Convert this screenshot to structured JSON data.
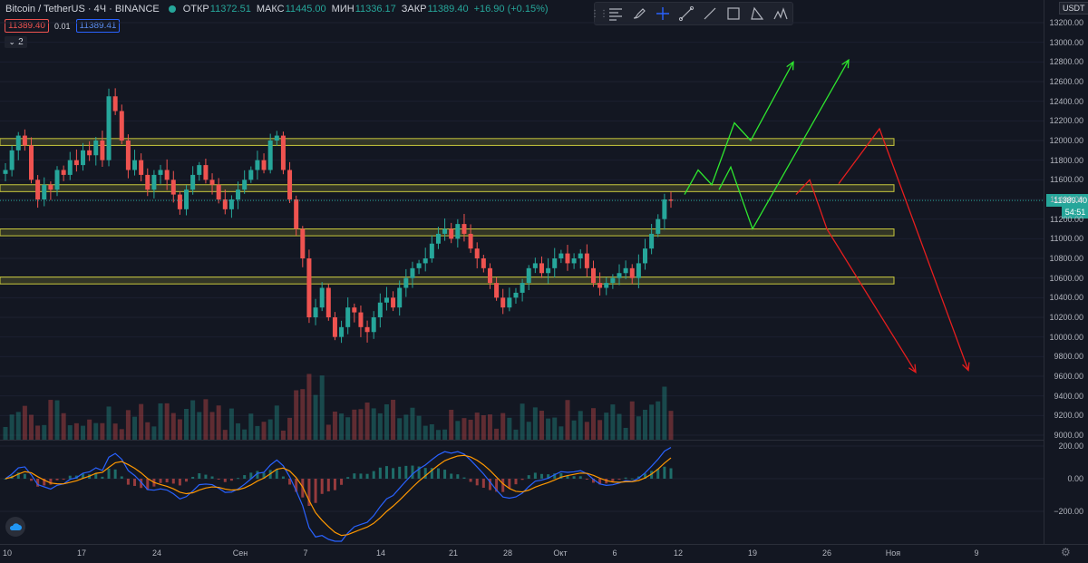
{
  "legend": {
    "symbol": "Bitcoin / TetherUS · 4Ч · BINANCE",
    "open_label": "ОТКР",
    "open": "11372.51",
    "high_label": "МАКС",
    "high": "11445.00",
    "low_label": "МИН",
    "low": "11336.17",
    "close_label": "ЗАКР",
    "close": "11389.40",
    "change": "+16.90 (+0.15%)"
  },
  "trade": {
    "sell": "11389.40",
    "spread": "0.01",
    "buy": "11389.41"
  },
  "collapse_label": "2",
  "toolbar": {
    "icons": [
      "grip-icon",
      "text-align-icon",
      "brush-icon",
      "crosshair-icon",
      "trend-line-icon",
      "line-icon",
      "rectangle-icon",
      "path-icon",
      "pattern-icon"
    ]
  },
  "currency": "USDT",
  "current_price_label": "11389.40",
  "countdown": "54:51",
  "colors": {
    "background": "#131722",
    "up": "#26a69a",
    "down": "#ef5350",
    "zone": "#c8c83c",
    "bull_arrow": "#2ee62e",
    "bear_arrow": "#e61e1e",
    "macd": "#2962ff",
    "signal": "#ff9800"
  },
  "chart_data": {
    "type": "line",
    "title": "Bitcoin / TetherUS",
    "xlabel": "",
    "ylabel": "",
    "price_axis": {
      "ylim": [
        9000,
        13200
      ],
      "ticks": [
        "9000.00",
        "9200.00",
        "9400.00",
        "9600.00",
        "9800.00",
        "10000.00",
        "10200.00",
        "10400.00",
        "10600.00",
        "10800.00",
        "11000.00",
        "11200.00",
        "11400.00",
        "11600.00",
        "11800.00",
        "12000.00",
        "12200.00",
        "12400.00",
        "12600.00",
        "12800.00",
        "13000.00",
        "13200.00"
      ]
    },
    "macd_axis": {
      "ticks": [
        "200.00",
        "0.00",
        "−200.00"
      ]
    },
    "time_axis": {
      "ticks": [
        "10",
        "17",
        "24",
        "Сен",
        "7",
        "14",
        "21",
        "28",
        "Окт",
        "6",
        "12",
        "19",
        "26",
        "Ноя",
        "9"
      ]
    },
    "series": [
      {
        "values": [
          11700,
          11900,
          12050,
          11950,
          11600,
          11400,
          11550,
          11500,
          11700,
          11650,
          11800,
          11750,
          11900,
          11850,
          12000,
          11800,
          12450,
          12300,
          12000,
          11700,
          11800,
          11650,
          11500,
          11650,
          11700,
          11600,
          11450,
          11300,
          11500,
          11650,
          11750,
          11600,
          11550,
          11400,
          11300,
          11400,
          11500,
          11600,
          11700,
          11800,
          11700,
          12000,
          12050,
          11700,
          11400,
          11100,
          10800,
          10200,
          10300,
          10500,
          10200,
          10000,
          10100,
          10300,
          10250,
          10100,
          10050,
          10200,
          10350,
          10400,
          10300,
          10500,
          10600,
          10700,
          10750,
          10800,
          10950,
          11050,
          11100,
          11000,
          11150,
          11050,
          10900,
          10800,
          10700,
          10550,
          10400,
          10300,
          10400,
          10450,
          10550,
          10700,
          10750,
          10650,
          10700,
          10800,
          10850,
          10750,
          10800,
          10850,
          10700,
          10550,
          10500,
          10550,
          10600,
          10650,
          10700,
          10600,
          10750,
          10900,
          11050,
          11200,
          11400,
          11389.4
        ]
      }
    ],
    "zones": [
      {
        "low": 11950,
        "high": 12020
      },
      {
        "low": 11480,
        "high": 11550
      },
      {
        "low": 11030,
        "high": 11100
      },
      {
        "low": 10540,
        "high": 10610
      }
    ],
    "projections": {
      "bullish": [
        [
          11450,
          11700,
          11550,
          12180,
          12000,
          12800
        ],
        [
          11500,
          11730,
          11100,
          12820
        ]
      ],
      "bearish": [
        [
          11450,
          11600,
          11100,
          9640
        ],
        [
          11560,
          12120,
          9660
        ]
      ]
    },
    "indicator": {
      "type": "MACD",
      "lines": [
        "MACD",
        "Signal"
      ],
      "histogram": true
    }
  }
}
